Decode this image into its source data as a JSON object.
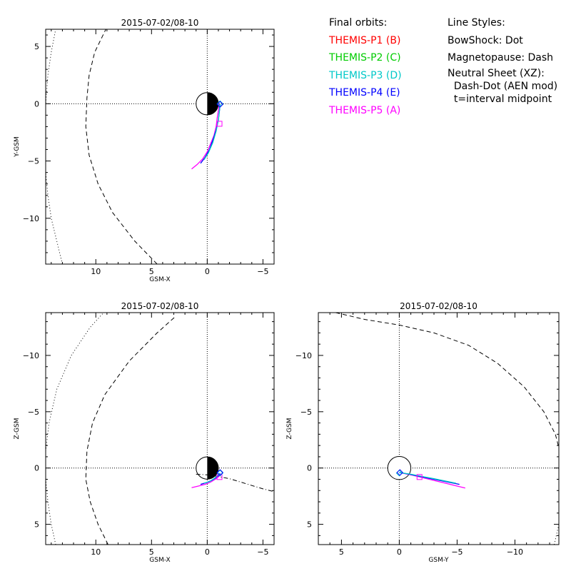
{
  "chart_data": [
    {
      "type": "line",
      "panel": "XY",
      "title": "2015-07-02/08-10",
      "xlabel": "GSM-X",
      "ylabel": "Y-GSM",
      "xlim": [
        14.5,
        -6.0
      ],
      "ylim": [
        6.5,
        -14.0
      ],
      "xticks": [
        10,
        5,
        0,
        -5
      ],
      "yticks": [
        -10,
        -5,
        0,
        5
      ],
      "earth": {
        "radius": 1,
        "night_side": "right"
      },
      "series": [
        {
          "name": "BowShock",
          "style": "dotted",
          "x": [
            13.0,
            13.5,
            14.0,
            14.3,
            14.5,
            14.6,
            14.5,
            14.3,
            14.0,
            13.6
          ],
          "y": [
            -14.0,
            -12.0,
            -10.0,
            -8.0,
            -6.0,
            -3.0,
            0.0,
            2.5,
            4.5,
            6.5
          ]
        },
        {
          "name": "Magnetopause",
          "style": "dashed",
          "x": [
            4.5,
            6.5,
            8.5,
            9.8,
            10.6,
            10.9,
            10.8,
            10.6,
            10.1,
            9.1
          ],
          "y": [
            -14.0,
            -12.0,
            -9.5,
            -7.0,
            -4.5,
            -2.0,
            0.5,
            2.5,
            4.5,
            6.5
          ]
        },
        {
          "name": "THEMIS-P5 (A)",
          "style": "solid",
          "color": "#ff00ff",
          "x": [
            1.4,
            0.9,
            0.4,
            0.0,
            -0.3,
            -0.6,
            -0.8,
            -0.9,
            -1.0,
            -1.1
          ],
          "y": [
            -5.7,
            -5.3,
            -4.8,
            -4.2,
            -3.5,
            -2.8,
            -2.0,
            -1.2,
            -0.6,
            0.0
          ]
        },
        {
          "name": "THEMIS-P4 (E)",
          "style": "solid",
          "color": "#0000ff",
          "x": [
            0.6,
            0.2,
            -0.2,
            -0.5,
            -0.8,
            -1.0,
            -1.1,
            -1.15
          ],
          "y": [
            -5.2,
            -4.7,
            -4.0,
            -3.2,
            -2.3,
            -1.4,
            -0.6,
            0.0
          ]
        },
        {
          "name": "THEMIS-P3 (D)",
          "style": "solid",
          "color": "#00c8c8",
          "x": [
            0.3,
            -0.1,
            -0.5,
            -0.8,
            -1.0,
            -1.1,
            -1.15
          ],
          "y": [
            -4.9,
            -4.3,
            -3.4,
            -2.4,
            -1.4,
            -0.6,
            0.0
          ]
        }
      ],
      "markers": [
        {
          "name": "THEMIS-P5 (A)",
          "shape": "square",
          "color": "#ff00ff",
          "x": -1.1,
          "y": -1.75
        },
        {
          "name": "THEMIS-P3 (D)",
          "shape": "diamond",
          "color": "#00c8c8",
          "x": -1.15,
          "y": 0.0
        },
        {
          "name": "THEMIS-P4 (E)",
          "shape": "diamond",
          "color": "#0000ff",
          "x": -1.15,
          "y": -0.05
        }
      ]
    },
    {
      "type": "line",
      "panel": "XZ",
      "title": "2015-07-02/08-10",
      "xlabel": "GSM-X",
      "ylabel": "Z-GSM",
      "xlim": [
        14.5,
        -6.0
      ],
      "ylim": [
        -13.8,
        6.8
      ],
      "xticks": [
        10,
        5,
        0,
        -5
      ],
      "yticks": [
        5,
        0,
        -5,
        -10
      ],
      "earth": {
        "radius": 1,
        "night_side": "right"
      },
      "series": [
        {
          "name": "BowShock",
          "style": "dotted",
          "x": [
            13.6,
            14.0,
            14.3,
            14.5,
            14.5,
            14.2,
            13.5,
            12.2,
            10.5,
            9.3
          ],
          "y": [
            6.8,
            5.0,
            3.0,
            1.0,
            -1.5,
            -4.0,
            -7.0,
            -10.0,
            -12.5,
            -13.8
          ]
        },
        {
          "name": "Magnetopause",
          "style": "dashed",
          "x": [
            8.9,
            9.8,
            10.5,
            10.9,
            10.8,
            10.3,
            9.2,
            7.0,
            4.5,
            2.8
          ],
          "y": [
            6.8,
            5.0,
            3.0,
            1.0,
            -1.5,
            -4.0,
            -6.5,
            -9.5,
            -12.0,
            -13.5
          ]
        },
        {
          "name": "Neutral Sheet",
          "style": "dashdot",
          "x": [
            1.0,
            0.0,
            -1.0,
            -2.0,
            -3.0,
            -4.0,
            -5.0,
            -6.0
          ],
          "y": [
            0.55,
            0.6,
            0.75,
            0.95,
            1.25,
            1.55,
            1.85,
            2.1
          ]
        },
        {
          "name": "THEMIS-P5 (A)",
          "style": "solid",
          "color": "#ff00ff",
          "x": [
            1.4,
            0.8,
            0.2,
            -0.3,
            -0.8,
            -1.1
          ],
          "y": [
            1.75,
            1.6,
            1.45,
            1.25,
            0.95,
            0.7
          ]
        },
        {
          "name": "THEMIS-P4 (E)",
          "style": "solid",
          "color": "#0000ff",
          "x": [
            0.6,
            0.1,
            -0.4,
            -0.8,
            -1.1,
            -1.15
          ],
          "y": [
            1.45,
            1.3,
            1.1,
            0.85,
            0.6,
            0.45
          ]
        },
        {
          "name": "THEMIS-P3 (D)",
          "style": "solid",
          "color": "#00c8c8",
          "x": [
            0.3,
            -0.2,
            -0.6,
            -0.9,
            -1.15
          ],
          "y": [
            1.35,
            1.2,
            0.95,
            0.7,
            0.45
          ]
        }
      ],
      "markers": [
        {
          "name": "THEMIS-P5 (A)",
          "shape": "square",
          "color": "#ff00ff",
          "x": -1.1,
          "y": 0.8
        },
        {
          "name": "THEMIS-P3 (D)",
          "shape": "diamond",
          "color": "#00c8c8",
          "x": -1.15,
          "y": 0.45
        },
        {
          "name": "THEMIS-P4 (E)",
          "shape": "diamond",
          "color": "#0000ff",
          "x": -1.15,
          "y": 0.4
        }
      ]
    },
    {
      "type": "line",
      "panel": "YZ",
      "title": "2015-07-02/08-10",
      "xlabel": "GSM-Y",
      "ylabel": "Z-GSM",
      "xlim": [
        7.0,
        -13.8
      ],
      "ylim": [
        -13.8,
        6.8
      ],
      "xticks": [
        5,
        0,
        -5,
        -10
      ],
      "yticks": [
        5,
        0,
        -5,
        -10
      ],
      "earth": {
        "radius": 1,
        "night_side": "none"
      },
      "series": [
        {
          "name": "Magnetopause",
          "style": "dashed",
          "x": [
            5.5,
            3.0,
            0.0,
            -3.0,
            -6.0,
            -8.5,
            -10.8,
            -12.5,
            -13.5,
            -13.8
          ],
          "y": [
            -13.8,
            -13.2,
            -12.7,
            -12.0,
            -10.9,
            -9.3,
            -7.2,
            -5.0,
            -3.0,
            -1.8
          ]
        },
        {
          "name": "BowShock",
          "style": "dotted",
          "x": [
            -13.4,
            -13.8
          ],
          "y": [
            6.8,
            5.0
          ]
        },
        {
          "name": "THEMIS-P5 (A)",
          "style": "solid",
          "color": "#ff00ff",
          "x": [
            0.0,
            -1.0,
            -2.0,
            -3.0,
            -4.0,
            -5.0,
            -5.7
          ],
          "y": [
            0.4,
            0.6,
            0.85,
            1.1,
            1.35,
            1.6,
            1.78
          ]
        },
        {
          "name": "THEMIS-P4 (E)",
          "style": "solid",
          "color": "#0000ff",
          "x": [
            0.0,
            -1.0,
            -2.0,
            -3.0,
            -4.0,
            -5.2
          ],
          "y": [
            0.4,
            0.58,
            0.8,
            1.0,
            1.2,
            1.45
          ]
        },
        {
          "name": "THEMIS-P3 (D)",
          "style": "solid",
          "color": "#00c8c8",
          "x": [
            0.0,
            -1.0,
            -2.0,
            -3.0,
            -4.9
          ],
          "y": [
            0.4,
            0.55,
            0.75,
            0.95,
            1.35
          ]
        }
      ],
      "markers": [
        {
          "name": "THEMIS-P5 (A)",
          "shape": "square",
          "color": "#ff00ff",
          "x": -1.75,
          "y": 0.8
        },
        {
          "name": "THEMIS-P3 (D)",
          "shape": "diamond",
          "color": "#00c8c8",
          "x": 0.0,
          "y": 0.45
        },
        {
          "name": "THEMIS-P4 (E)",
          "shape": "diamond",
          "color": "#0000ff",
          "x": -0.05,
          "y": 0.4
        }
      ]
    }
  ],
  "legend": {
    "orbits_header": "Final orbits:",
    "orbits": [
      {
        "label": "THEMIS-P1 (B)",
        "color": "#ff0000"
      },
      {
        "label": "THEMIS-P2 (C)",
        "color": "#00cc00"
      },
      {
        "label": "THEMIS-P3 (D)",
        "color": "#00c8c8"
      },
      {
        "label": "THEMIS-P4 (E)",
        "color": "#0000ff"
      },
      {
        "label": "THEMIS-P5 (A)",
        "color": "#ff00ff"
      }
    ],
    "styles_header": "Line Styles:",
    "styles": [
      "BowShock: Dot",
      "Magnetopause: Dash",
      "Neutral Sheet (XZ):",
      "  Dash-Dot (AEN mod)",
      "  t=interval midpoint"
    ]
  }
}
